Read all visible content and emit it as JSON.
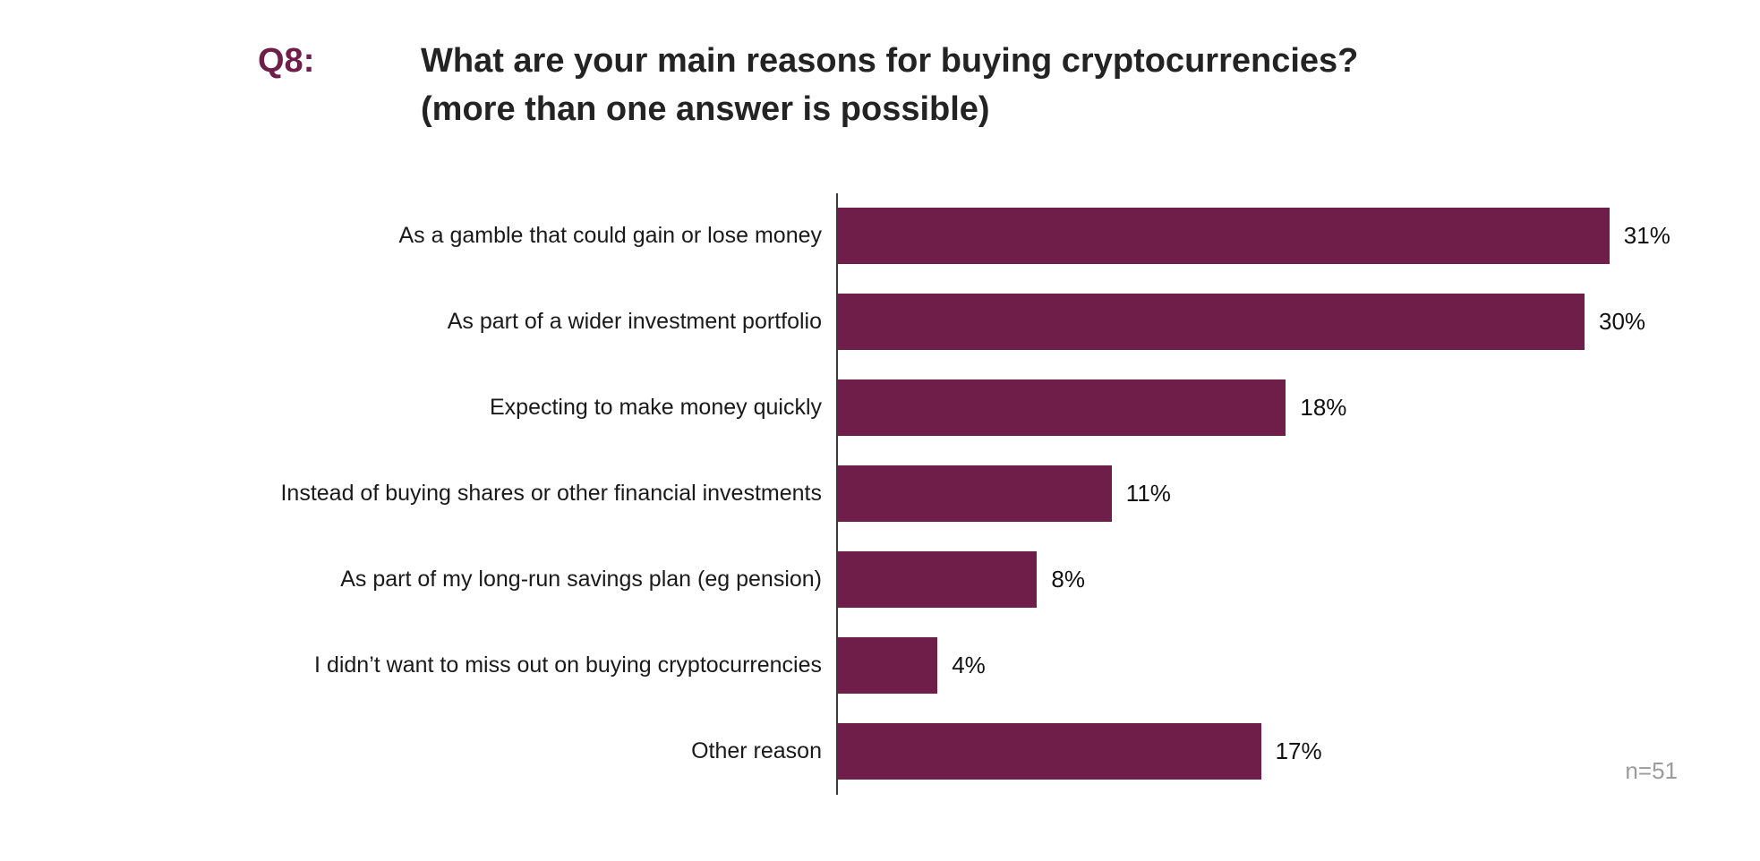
{
  "header": {
    "question_number": "Q8:",
    "title_line1": "What are your main reasons for buying cryptocurrencies?",
    "title_line2": "(more than one answer is possible)"
  },
  "footnote": "n=51",
  "colors": {
    "bar": "#6E1E48",
    "accent": "#6E1E48",
    "axis": "#3c3c3c",
    "footnote": "#9b9b9b"
  },
  "chart_data": {
    "type": "bar",
    "orientation": "horizontal",
    "title": "What are your main reasons for buying cryptocurrencies? (more than one answer is possible)",
    "categories": [
      "As a gamble that could gain or lose money",
      "As part of a wider investment portfolio",
      "Expecting to make money quickly",
      "Instead of buying shares or other financial investments",
      "As part of my long-run savings plan (eg pension)",
      "I didn’t want to miss out on buying cryptocurrencies",
      "Other reason"
    ],
    "values": [
      31,
      30,
      18,
      11,
      8,
      4,
      17
    ],
    "value_suffix": "%",
    "xlim": [
      0,
      31
    ],
    "grid": false,
    "legend": false,
    "sample_size_note": "n=51"
  }
}
